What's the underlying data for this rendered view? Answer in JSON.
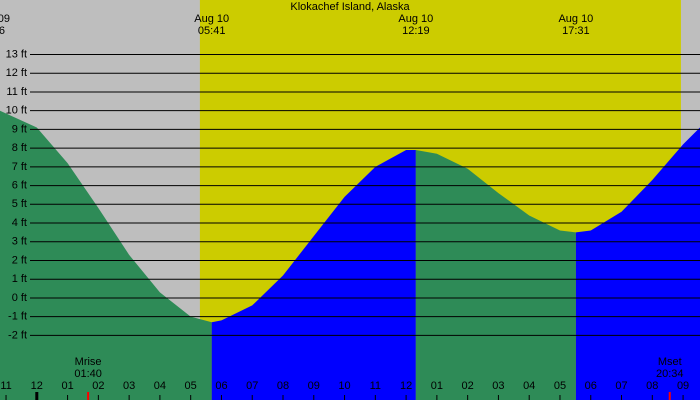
{
  "chart_data": {
    "type": "tide",
    "title": "Klokachef Island, Alaska",
    "x": [
      -1.2,
      0,
      1,
      2,
      3,
      4,
      5,
      5.683,
      6,
      7,
      8,
      9,
      10,
      11,
      12,
      12.317,
      13,
      14,
      15,
      16,
      17,
      17.517,
      18,
      19,
      20,
      21,
      21.55
    ],
    "values": [
      10.0,
      9.1,
      7.2,
      4.8,
      2.3,
      0.3,
      -1.0,
      -1.3,
      -1.2,
      -0.4,
      1.2,
      3.3,
      5.4,
      7.0,
      7.9,
      7.9,
      7.7,
      6.9,
      5.6,
      4.4,
      3.6,
      3.5,
      3.6,
      4.6,
      6.3,
      8.2,
      9.1
    ],
    "falling_color": "#2e8b57",
    "rising_color": "#0000ff",
    "night_color": "#bebebe",
    "day_color": "#cccc00",
    "daylight": [
      5.3,
      20.93
    ],
    "xlim": [
      -1.196,
      21.55
    ],
    "ylim": [
      -5.45,
      15.91
    ],
    "yticks": [
      {
        "value": -2,
        "label": "-2 ft"
      },
      {
        "value": -1,
        "label": "-1 ft"
      },
      {
        "value": 0,
        "label": "0 ft"
      },
      {
        "value": 1,
        "label": "1 ft"
      },
      {
        "value": 2,
        "label": "2 ft"
      },
      {
        "value": 3,
        "label": "3 ft"
      },
      {
        "value": 4,
        "label": "4 ft"
      },
      {
        "value": 5,
        "label": "5 ft"
      },
      {
        "value": 6,
        "label": "6 ft"
      },
      {
        "value": 7,
        "label": "7 ft"
      },
      {
        "value": 8,
        "label": "8 ft"
      },
      {
        "value": 9,
        "label": "9 ft"
      },
      {
        "value": 10,
        "label": "10 ft"
      },
      {
        "value": 11,
        "label": "11 ft"
      },
      {
        "value": 12,
        "label": "12 ft"
      },
      {
        "value": 13,
        "label": "13 ft"
      }
    ],
    "xticks": [
      {
        "value": -1,
        "label": "11"
      },
      {
        "value": 0,
        "label": "12"
      },
      {
        "value": 1,
        "label": "01"
      },
      {
        "value": 2,
        "label": "02"
      },
      {
        "value": 3,
        "label": "03"
      },
      {
        "value": 4,
        "label": "04"
      },
      {
        "value": 5,
        "label": "05"
      },
      {
        "value": 6,
        "label": "06"
      },
      {
        "value": 7,
        "label": "07"
      },
      {
        "value": 8,
        "label": "08"
      },
      {
        "value": 9,
        "label": "09"
      },
      {
        "value": 10,
        "label": "10"
      },
      {
        "value": 11,
        "label": "11"
      },
      {
        "value": 12,
        "label": "12"
      },
      {
        "value": 13,
        "label": "01"
      },
      {
        "value": 14,
        "label": "02"
      },
      {
        "value": 15,
        "label": "03"
      },
      {
        "value": 16,
        "label": "04"
      },
      {
        "value": 17,
        "label": "05"
      },
      {
        "value": 18,
        "label": "06"
      },
      {
        "value": 19,
        "label": "07"
      },
      {
        "value": 20,
        "label": "08"
      },
      {
        "value": 21,
        "label": "09"
      }
    ],
    "edge_label": {
      "date": "09",
      "time": "6"
    },
    "extremes": [
      {
        "value": 5.683,
        "date": "Aug 10",
        "time": "05:41"
      },
      {
        "value": 12.317,
        "date": "Aug 10",
        "time": "12:19"
      },
      {
        "value": 17.517,
        "date": "Aug 10",
        "time": "17:31"
      }
    ],
    "moon": [
      {
        "value": 1.667,
        "label": "Mrise",
        "time": "01:40"
      },
      {
        "value": 20.567,
        "label": "Mset",
        "time": "20:34"
      }
    ]
  }
}
